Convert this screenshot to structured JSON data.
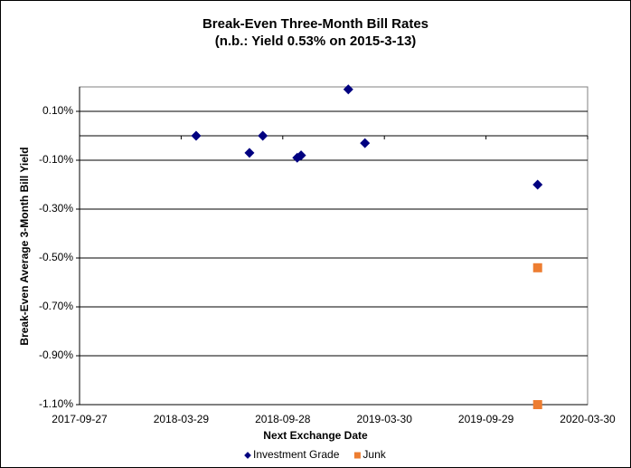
{
  "chart_data": {
    "type": "scatter",
    "title": "Break-Even Three-Month Bill Rates",
    "subtitle": "(n.b.: Yield 0.53% on 2015-3-13)",
    "x_label": "Next Exchange Date",
    "y_label": "Break-Even Average 3-Month Bill Yield",
    "xlim": [
      "2017-09-27",
      "2020-03-30"
    ],
    "xticks": [
      "2017-09-27",
      "2018-03-29",
      "2018-09-28",
      "2019-03-30",
      "2019-09-29",
      "2020-03-30"
    ],
    "ylim": [
      -1.1,
      0.2
    ],
    "yticks": [
      {
        "value": 0.1,
        "label": "0.10%"
      },
      {
        "value": -0.1,
        "label": "-0.10%"
      },
      {
        "value": -0.3,
        "label": "-0.30%"
      },
      {
        "value": -0.5,
        "label": "-0.50%"
      },
      {
        "value": -0.7,
        "label": "-0.70%"
      },
      {
        "value": -0.9,
        "label": "-0.90%"
      },
      {
        "value": -1.1,
        "label": "-1.10%"
      }
    ],
    "grid": true,
    "legend": "bottom",
    "series": [
      {
        "name": "Investment Grade",
        "color": "#000080",
        "marker": "diamond",
        "x": [
          "2018-04-25",
          "2018-07-30",
          "2018-08-23",
          "2018-10-24",
          "2018-10-31",
          "2019-01-24",
          "2019-02-23",
          "2019-12-31"
        ],
        "values": [
          0.0,
          -0.07,
          0.0,
          -0.09,
          -0.08,
          0.19,
          -0.03,
          -0.2
        ]
      },
      {
        "name": "Junk",
        "color": "#ED7D31",
        "marker": "square",
        "x": [
          "2019-12-31",
          "2019-12-31"
        ],
        "values": [
          -0.54,
          -1.1
        ]
      }
    ]
  }
}
